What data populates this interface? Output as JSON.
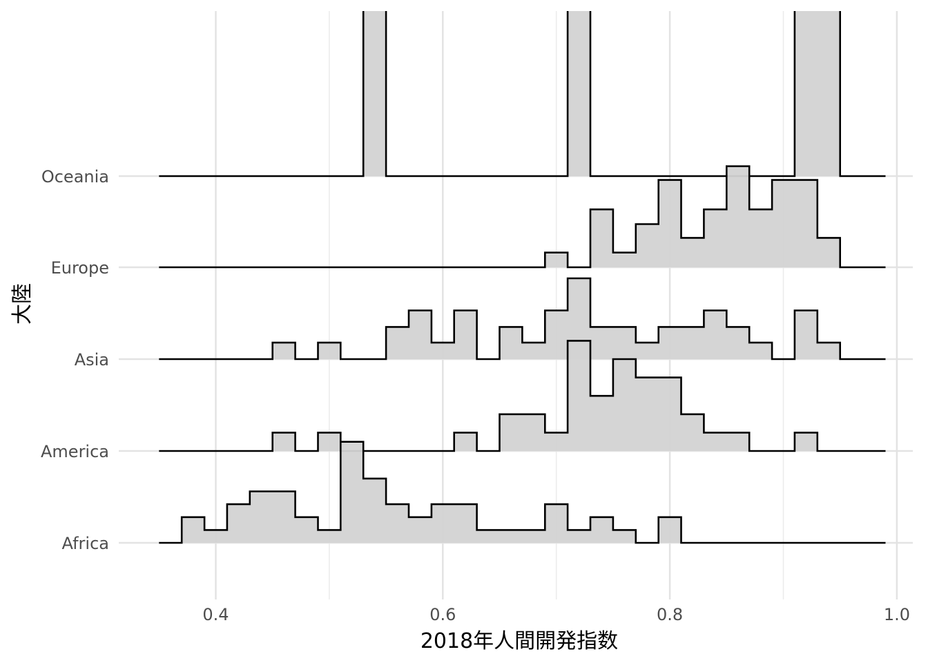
{
  "chart_data": {
    "type": "ridgeline-histogram",
    "xlabel": "2018年人間開発指数",
    "ylabel": "大陸",
    "xlim": [
      0.3,
      1.0
    ],
    "x_ticks": [
      0.4,
      0.6,
      0.8,
      1.0
    ],
    "x_tick_labels": [
      "0.4",
      "0.6",
      "0.8",
      "1.0"
    ],
    "bin_width": 0.02,
    "bins_start": 0.35,
    "bin_count": 32,
    "height_scale": 1.0,
    "grid": true,
    "fill_color": "#d3d3d3",
    "line_color": "#000000",
    "categories": [
      "Africa",
      "America",
      "Asia",
      "Europe",
      "Oceania"
    ],
    "series": [
      {
        "name": "Africa",
        "values": [
          0,
          0.28,
          0.14,
          0.42,
          0.56,
          0.56,
          0.28,
          0.14,
          1.1,
          0.7,
          0.42,
          0.28,
          0.42,
          0.42,
          0.14,
          0.14,
          0.14,
          0.42,
          0.14,
          0.28,
          0.14,
          0,
          0.28,
          0,
          0,
          0,
          0,
          0,
          0,
          0,
          0,
          0
        ]
      },
      {
        "name": "America",
        "values": [
          0,
          0,
          0,
          0,
          0,
          0.2,
          0,
          0.2,
          0,
          0,
          0,
          0,
          0,
          0.2,
          0,
          0.4,
          0.4,
          0.2,
          1.2,
          0.6,
          1.0,
          0.8,
          0.8,
          0.4,
          0.2,
          0.2,
          0,
          0,
          0.2,
          0,
          0,
          0
        ]
      },
      {
        "name": "Asia",
        "values": [
          0,
          0,
          0,
          0,
          0,
          0.18,
          0,
          0.18,
          0,
          0,
          0.35,
          0.53,
          0.18,
          0.53,
          0,
          0.35,
          0.18,
          0.53,
          0.88,
          0.35,
          0.35,
          0.18,
          0.35,
          0.35,
          0.53,
          0.35,
          0.18,
          0,
          0.53,
          0.18,
          0,
          0
        ]
      },
      {
        "name": "Europe",
        "values": [
          0,
          0,
          0,
          0,
          0,
          0,
          0,
          0,
          0,
          0,
          0,
          0,
          0,
          0,
          0,
          0,
          0,
          0.16,
          0,
          0.63,
          0.16,
          0.47,
          0.95,
          0.32,
          0.63,
          1.1,
          0.63,
          0.95,
          0.95,
          0.32,
          0,
          0
        ]
      },
      {
        "name": "Oceania",
        "values": [
          0,
          0,
          0,
          0,
          0,
          0,
          0,
          0,
          0,
          5.0,
          0,
          0,
          0,
          0,
          0,
          0,
          0,
          0,
          5.0,
          0,
          0,
          0,
          0,
          0,
          0,
          0,
          0,
          0,
          5.0,
          5.0,
          0,
          0
        ]
      }
    ]
  }
}
